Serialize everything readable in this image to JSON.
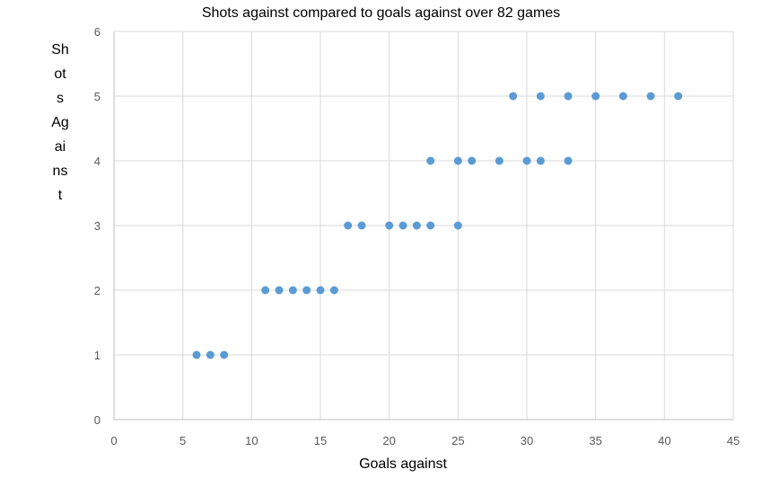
{
  "chart_data": {
    "type": "scatter",
    "title": "Shots against compared to goals against over 82 games",
    "xlabel": "Goals against",
    "ylabel": "Shots Against",
    "xlim": [
      0,
      45
    ],
    "ylim": [
      0,
      6
    ],
    "xticks": [
      0,
      5,
      10,
      15,
      20,
      25,
      30,
      35,
      40,
      45
    ],
    "yticks": [
      0,
      1,
      2,
      3,
      4,
      5,
      6
    ],
    "grid": true,
    "legend": "none",
    "color": "#5B9BD5",
    "series": [
      {
        "points": [
          [
            6,
            1
          ],
          [
            7,
            1
          ],
          [
            8,
            1
          ],
          [
            11,
            2
          ],
          [
            12,
            2
          ],
          [
            13,
            2
          ],
          [
            14,
            2
          ],
          [
            15,
            2
          ],
          [
            16,
            2
          ],
          [
            17,
            3
          ],
          [
            18,
            3
          ],
          [
            20,
            3
          ],
          [
            21,
            3
          ],
          [
            22,
            3
          ],
          [
            23,
            3
          ],
          [
            25,
            3
          ],
          [
            23,
            4
          ],
          [
            25,
            4
          ],
          [
            26,
            4
          ],
          [
            28,
            4
          ],
          [
            30,
            4
          ],
          [
            31,
            4
          ],
          [
            33,
            4
          ],
          [
            29,
            5
          ],
          [
            31,
            5
          ],
          [
            33,
            5
          ],
          [
            35,
            5
          ],
          [
            37,
            5
          ],
          [
            39,
            5
          ],
          [
            41,
            5
          ]
        ]
      }
    ]
  }
}
